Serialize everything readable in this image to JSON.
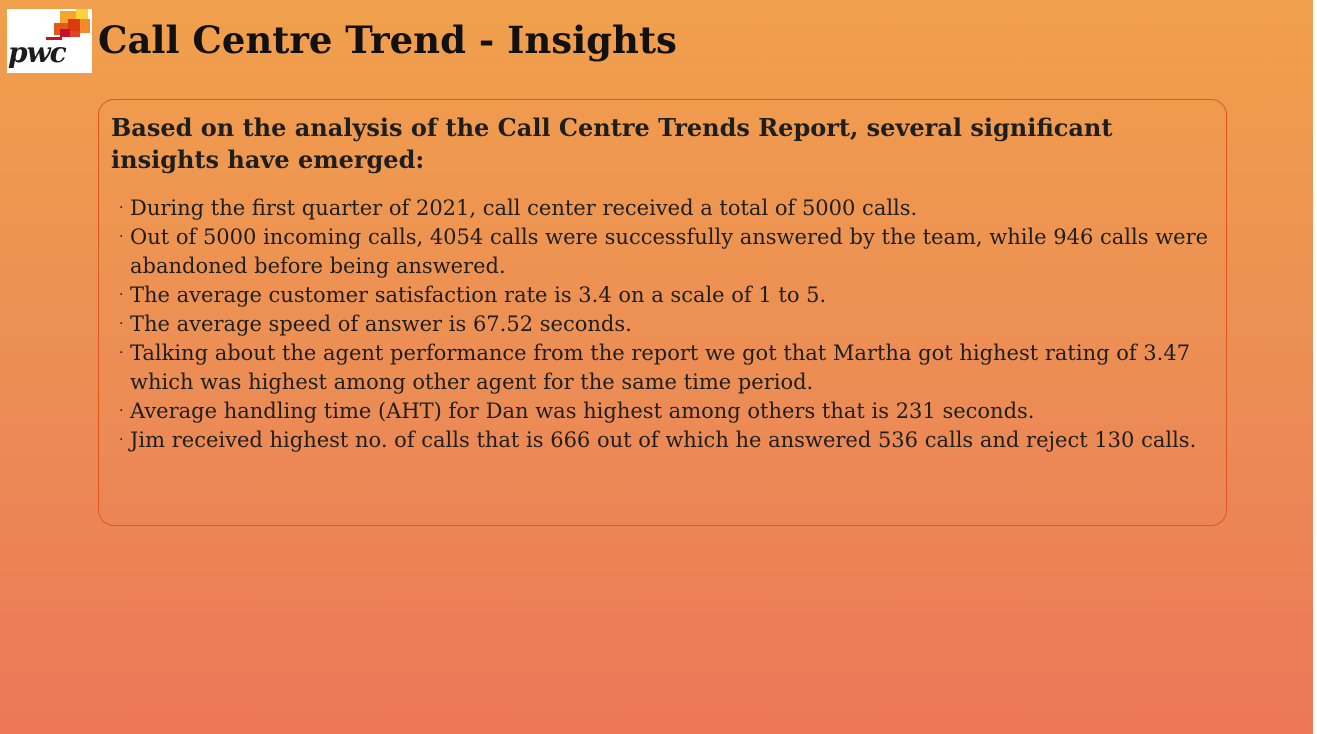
{
  "logo": {
    "text": "pwc",
    "icon": "pwc-logo"
  },
  "page": {
    "title": "Call Centre Trend - Insights"
  },
  "insights": {
    "intro": "Based on the analysis of the Call Centre Trends Report, several significant insights have emerged:",
    "bullet": "·",
    "items": [
      "During the first quarter of 2021, call center received a total of 5000 calls.",
      "Out of 5000 incoming calls, 4054 calls were successfully answered by the team, while 946 calls were abandoned before being answered.",
      "The average customer satisfaction rate is 3.4 on a scale of 1 to 5.",
      "The average speed of answer is 67.52 seconds.",
      "Talking about the agent performance from the report we got that Martha got highest rating of 3.47 which was highest among other agent for the same time period.",
      "Average handling time (AHT) for Dan was highest among others that is 231 seconds.",
      "Jim received highest no. of calls that is 666 out of which he answered 536 calls and reject 130 calls."
    ]
  },
  "colors": {
    "background_top": "#f0a04c",
    "background_bottom": "#ec7758",
    "box_border": "#e0581e",
    "text": "#1e1e1e"
  }
}
